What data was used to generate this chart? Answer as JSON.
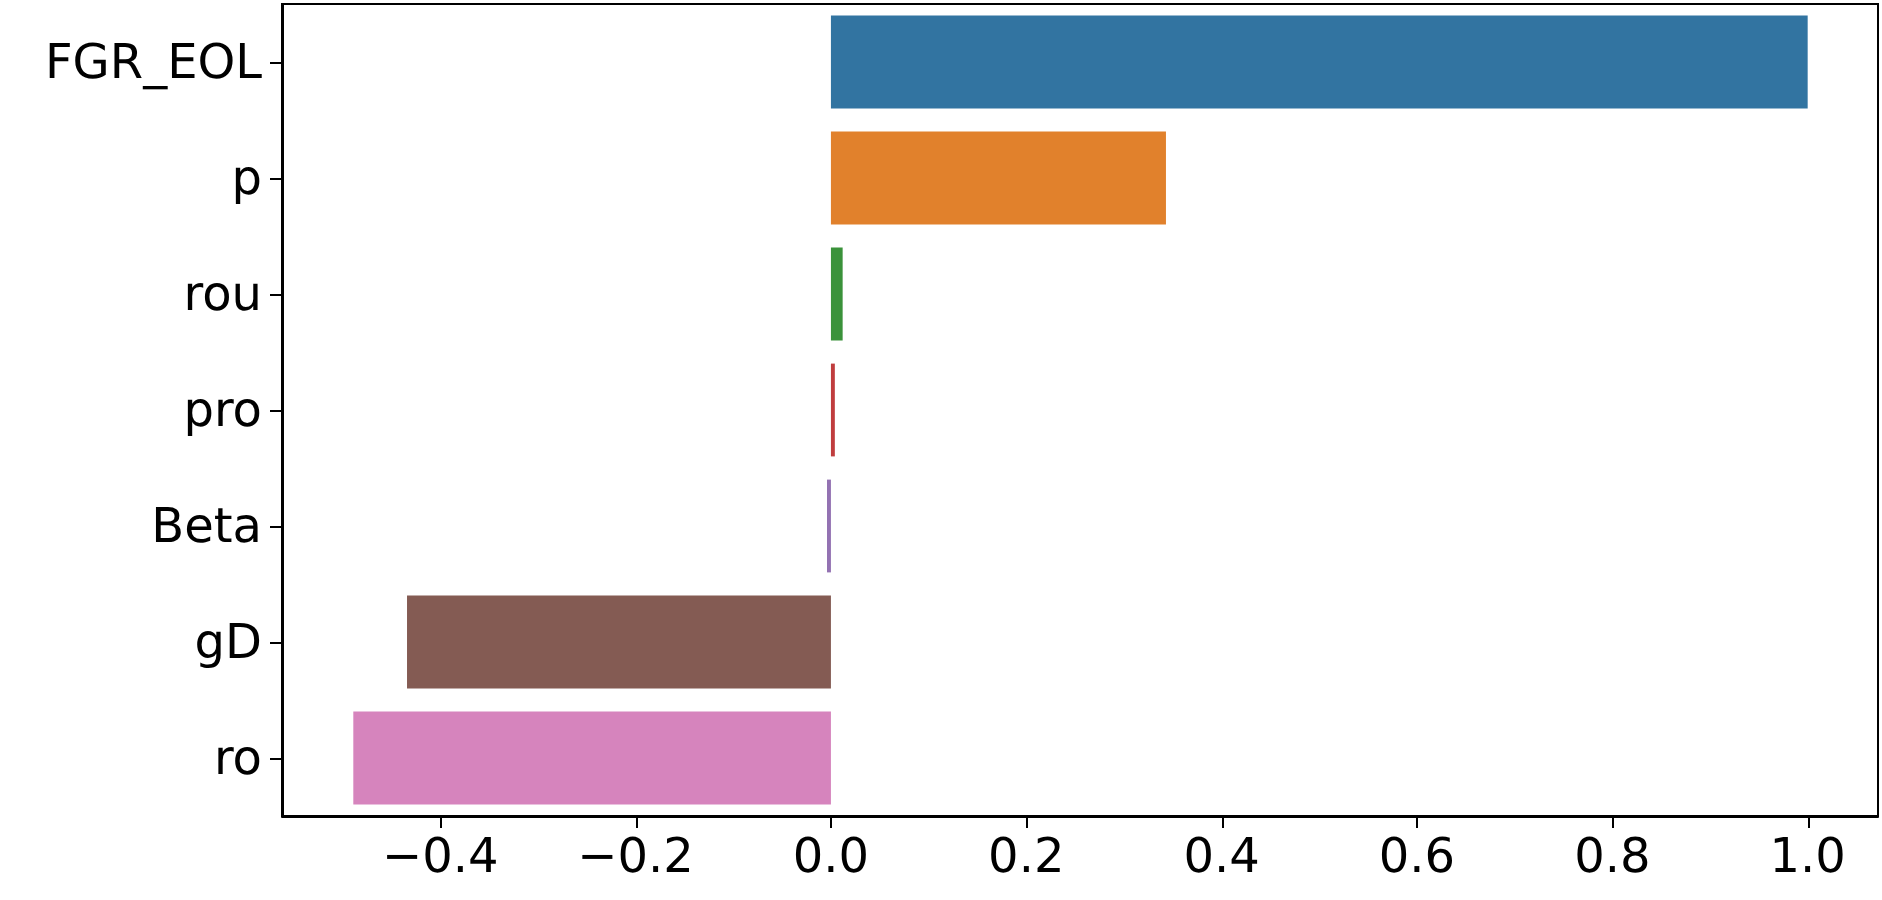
{
  "chart_data": {
    "type": "bar",
    "orientation": "horizontal",
    "categories": [
      "FGR_EOL",
      "p",
      "rou",
      "pro",
      "Beta",
      "gD",
      "ro"
    ],
    "values": [
      1.0,
      0.343,
      0.012,
      0.004,
      -0.004,
      -0.434,
      -0.489
    ],
    "colors": [
      "#3274a1",
      "#e1812c",
      "#3a923a",
      "#c03d3e",
      "#9372b2",
      "#845b53",
      "#d684bd"
    ],
    "xlim": [
      -0.562,
      1.072
    ],
    "xticks": [
      {
        "value": -0.4,
        "label": "−0.4"
      },
      {
        "value": -0.2,
        "label": "−0.2"
      },
      {
        "value": 0.0,
        "label": "0.0"
      },
      {
        "value": 0.2,
        "label": "0.2"
      },
      {
        "value": 0.4,
        "label": "0.4"
      },
      {
        "value": 0.6,
        "label": "0.6"
      },
      {
        "value": 0.8,
        "label": "0.8"
      },
      {
        "value": 1.0,
        "label": "1.0"
      }
    ],
    "grid": false
  }
}
